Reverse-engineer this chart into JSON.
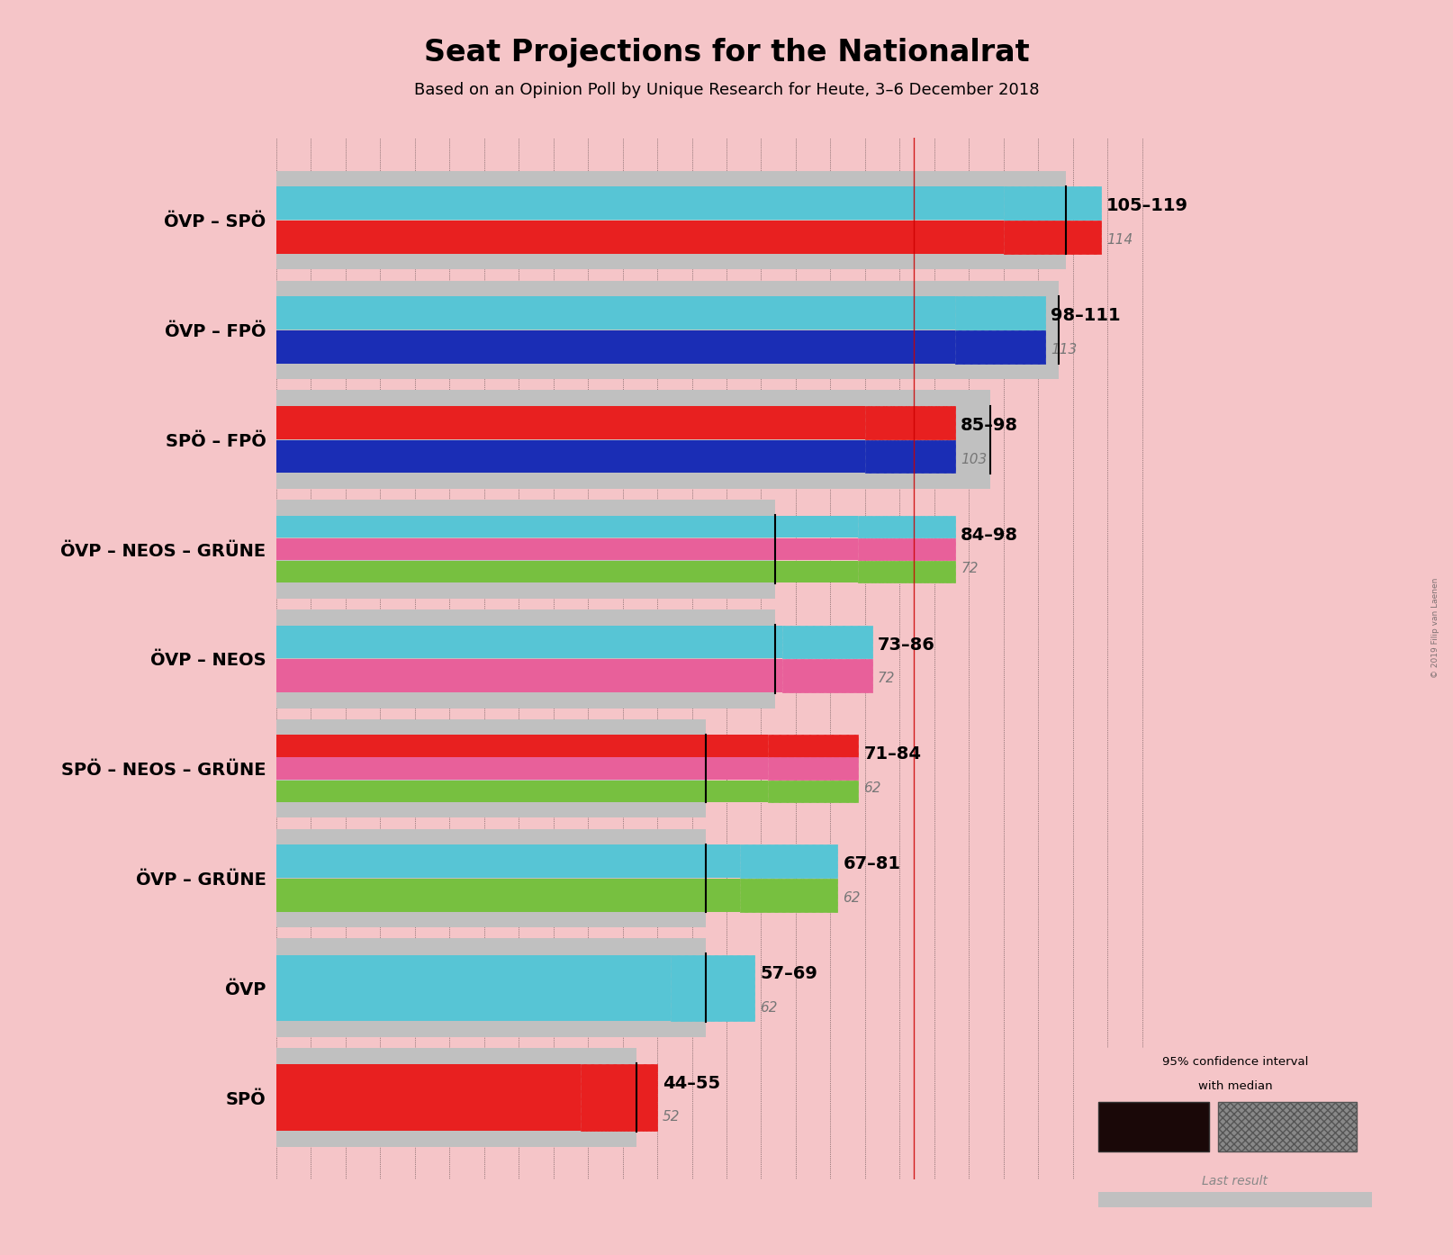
{
  "title": "Seat Projections for the Nationalrat",
  "subtitle": "Based on an Opinion Poll by Unique Research for Heute, 3–6 December 2018",
  "watermark": "© 2019 Filip van Laenen",
  "background_color": "#f5c5c8",
  "coalitions": [
    {
      "name": "ÖVP – SPÖ",
      "ci_low": 105,
      "median": 114,
      "ci_high": 119,
      "last_result": 114,
      "colors": [
        "#57c5d5",
        "#e82020"
      ]
    },
    {
      "name": "ÖVP – FPÖ",
      "ci_low": 98,
      "median": 113,
      "ci_high": 111,
      "last_result": 113,
      "colors": [
        "#57c5d5",
        "#1a2db5"
      ]
    },
    {
      "name": "SPÖ – FPÖ",
      "ci_low": 85,
      "median": 103,
      "ci_high": 98,
      "last_result": 103,
      "colors": [
        "#e82020",
        "#1a2db5"
      ]
    },
    {
      "name": "ÖVP – NEOS – GRÜNE",
      "ci_low": 84,
      "median": 72,
      "ci_high": 98,
      "last_result": 72,
      "colors": [
        "#57c5d5",
        "#e8609a",
        "#77c040"
      ]
    },
    {
      "name": "ÖVP – NEOS",
      "ci_low": 73,
      "median": 72,
      "ci_high": 86,
      "last_result": 72,
      "colors": [
        "#57c5d5",
        "#e8609a"
      ]
    },
    {
      "name": "SPÖ – NEOS – GRÜNE",
      "ci_low": 71,
      "median": 62,
      "ci_high": 84,
      "last_result": 62,
      "colors": [
        "#e82020",
        "#e8609a",
        "#77c040"
      ]
    },
    {
      "name": "ÖVP – GRÜNE",
      "ci_low": 67,
      "median": 62,
      "ci_high": 81,
      "last_result": 62,
      "colors": [
        "#57c5d5",
        "#77c040"
      ]
    },
    {
      "name": "ÖVP",
      "ci_low": 57,
      "median": 62,
      "ci_high": 69,
      "last_result": 62,
      "colors": [
        "#57c5d5"
      ]
    },
    {
      "name": "SPÖ",
      "ci_low": 44,
      "median": 52,
      "ci_high": 55,
      "last_result": 52,
      "colors": [
        "#e82020"
      ]
    }
  ],
  "x_max": 130,
  "majority_line": 92,
  "tick_interval": 5,
  "bar_height": 0.62,
  "legend_solid_color": "#1a0808",
  "legend_hatch_color": "#888888",
  "last_result_color": "#c0c0c0",
  "median_line_color": "#cc0000",
  "range_fontsize": 14,
  "last_fontsize": 11,
  "label_fontsize": 14,
  "title_fontsize": 24,
  "subtitle_fontsize": 13
}
